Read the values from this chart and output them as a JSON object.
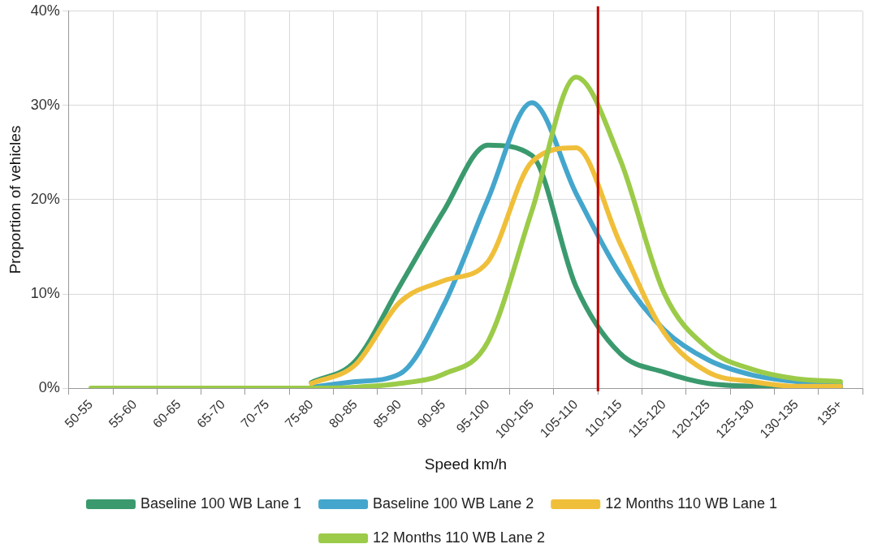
{
  "chart_data": {
    "type": "line",
    "xlabel": "Speed km/h",
    "ylabel": "Proportion of vehicles",
    "categories": [
      "50-55",
      "55-60",
      "60-65",
      "65-70",
      "70-75",
      "75-80",
      "80-85",
      "85-90",
      "90-95",
      "95-100",
      "100-105",
      "105-110",
      "110-115",
      "115-120",
      "120-125",
      "125-130",
      "130-135",
      "135+"
    ],
    "series": [
      {
        "name": "Baseline 100 WB Lane 1",
        "color": "#3a9a6e",
        "values": [
          null,
          null,
          null,
          null,
          null,
          0.6,
          2.9,
          10.8,
          18.8,
          25.8,
          24.7,
          10.8,
          3.7,
          1.7,
          0.5,
          0.2,
          0.1,
          0.1
        ]
      },
      {
        "name": "Baseline 100 WB Lane 2",
        "color": "#44a6cc",
        "values": [
          null,
          null,
          null,
          null,
          null,
          0.1,
          0.7,
          1.5,
          8.8,
          20,
          30.3,
          20.7,
          12.1,
          6.2,
          3,
          1.4,
          0.7,
          0.4
        ]
      },
      {
        "name": "12 Months 110 WB Lane 1",
        "color": "#f0bf3a",
        "values": [
          null,
          null,
          null,
          null,
          null,
          0.5,
          2.5,
          9.1,
          11.4,
          13.4,
          24,
          25.5,
          15.4,
          5.9,
          1.7,
          0.7,
          0.2,
          0.2
        ]
      },
      {
        "name": "12 Months 110 WB Lane 2",
        "color": "#9bcb48",
        "values": [
          0,
          0,
          0,
          0,
          0,
          0,
          0.1,
          0.5,
          1.5,
          4.9,
          18.8,
          33,
          24.3,
          10.1,
          4.2,
          2,
          1,
          0.7
        ]
      }
    ],
    "ylim": [
      0,
      40
    ],
    "yticks": [
      {
        "value": 0,
        "label": "0%"
      },
      {
        "value": 10,
        "label": "10%"
      },
      {
        "value": 20,
        "label": "20%"
      },
      {
        "value": 30,
        "label": "30%"
      },
      {
        "value": 40,
        "label": "40%"
      }
    ],
    "grid": true,
    "legend": "bottom",
    "marker": "none",
    "line_style": "solid",
    "ref_lines": [
      {
        "axis": "x",
        "value": "110-115",
        "color": "#c00000"
      }
    ]
  }
}
